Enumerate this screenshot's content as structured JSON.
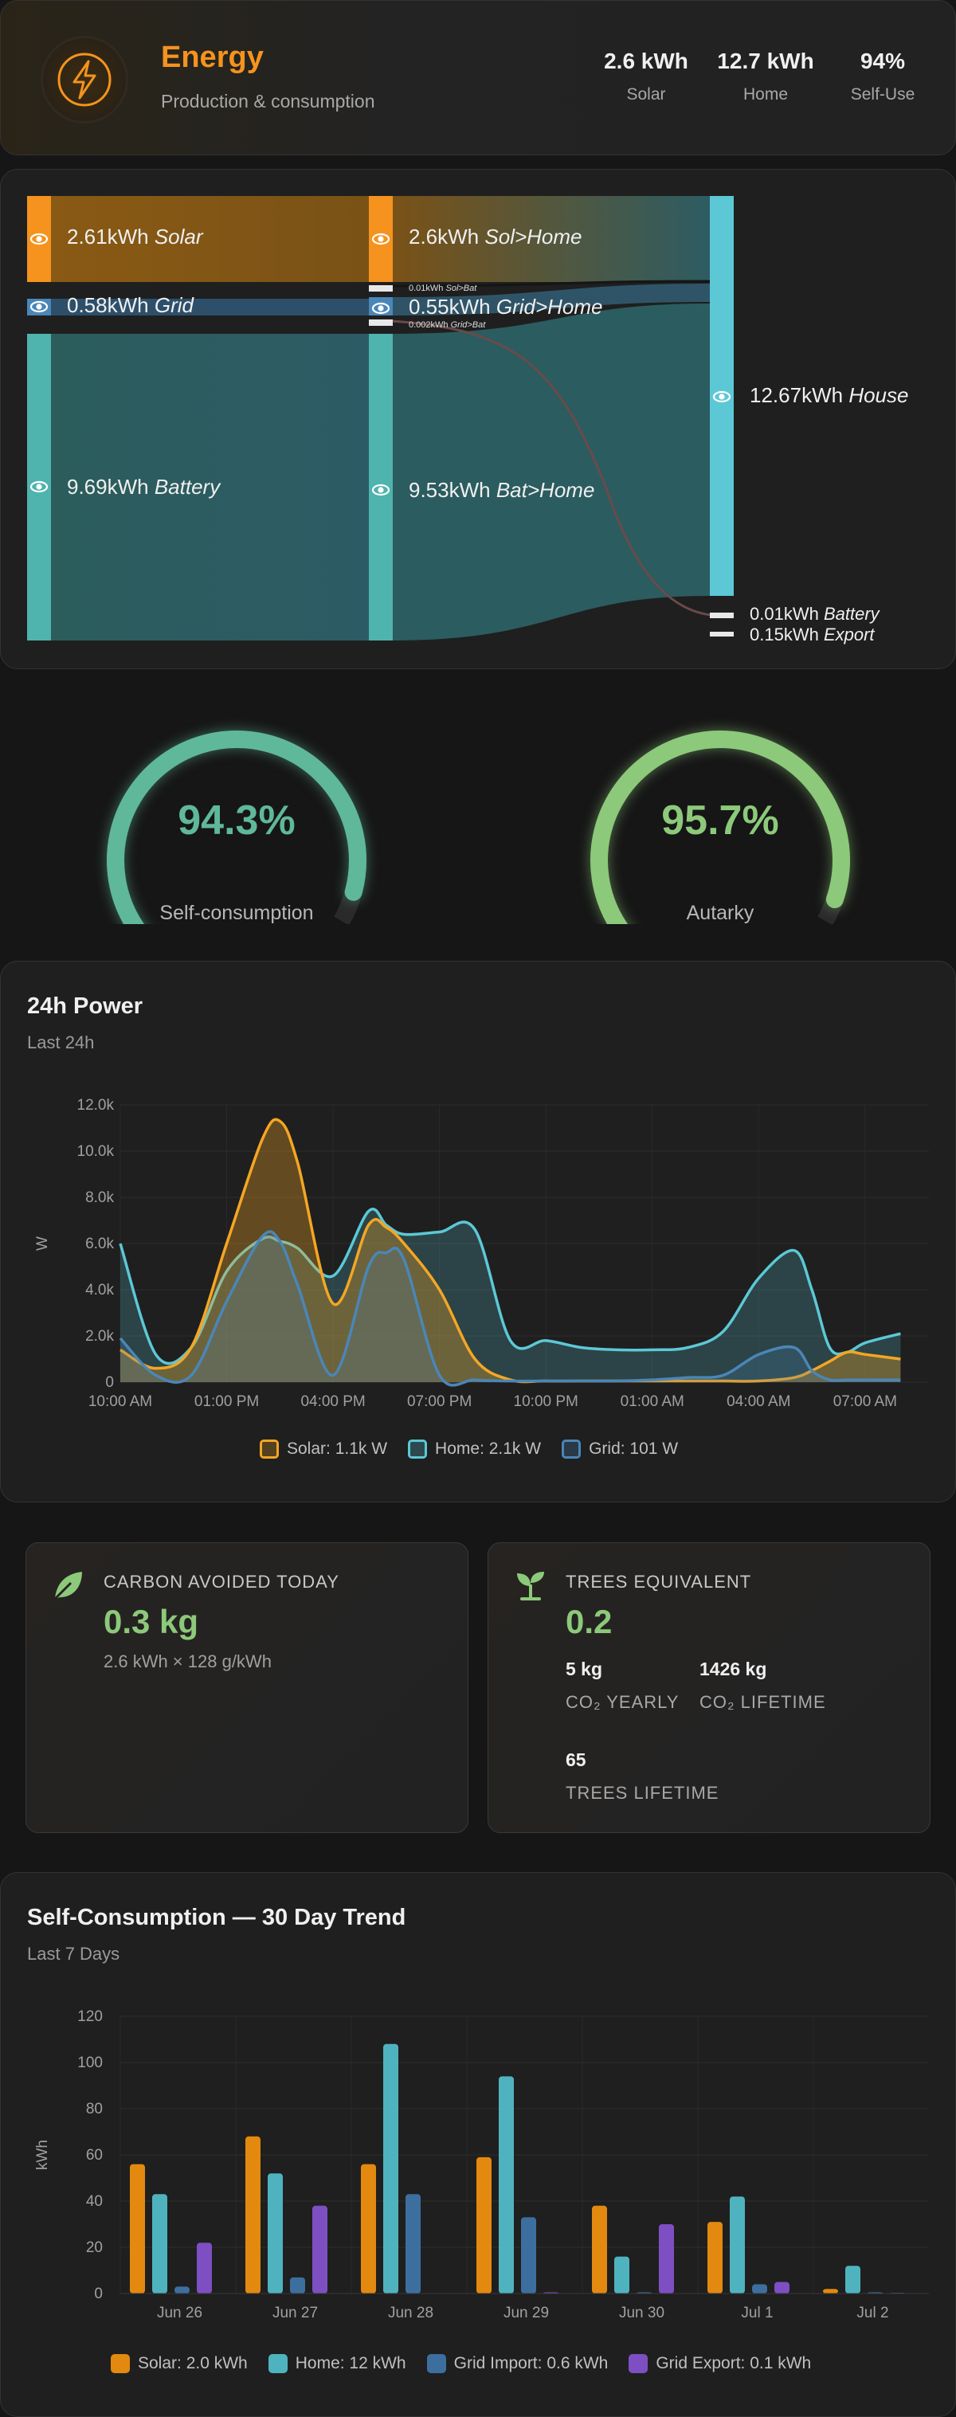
{
  "header": {
    "title": "Energy",
    "subtitle": "Production & consumption",
    "stats": [
      {
        "value": "2.6 kWh",
        "label": "Solar"
      },
      {
        "value": "12.7 kWh",
        "label": "Home"
      },
      {
        "value": "94%",
        "label": "Self-Use"
      }
    ],
    "accent": "#f5931e"
  },
  "sankey": {
    "sources": [
      {
        "value": "2.61kWh",
        "name": "Solar"
      },
      {
        "value": "0.58kWh",
        "name": "Grid"
      },
      {
        "value": "9.69kWh",
        "name": "Battery"
      }
    ],
    "middle": [
      {
        "value": "2.6kWh",
        "name": "Sol>Home"
      },
      {
        "value": "0.01kWh",
        "name": "Sol>Bat"
      },
      {
        "value": "0.55kWh",
        "name": "Grid>Home"
      },
      {
        "value": "0.002kWh",
        "name": "Grid>Bat"
      },
      {
        "value": "9.53kWh",
        "name": "Bat>Home"
      }
    ],
    "targets": [
      {
        "value": "12.67kWh",
        "name": "House"
      },
      {
        "value": "0.01kWh",
        "name": "Battery"
      },
      {
        "value": "0.15kWh",
        "name": "Export"
      }
    ]
  },
  "gauges": [
    {
      "value": "94.3%",
      "fraction": 0.943,
      "label": "Self-consumption",
      "color": "#5fb89a"
    },
    {
      "value": "95.7%",
      "fraction": 0.957,
      "label": "Autarky",
      "color": "#8cc97a"
    }
  ],
  "power_chart": {
    "title": "24h Power",
    "subtitle": "Last 24h",
    "legend": [
      "Solar: 1.1k W",
      "Home: 2.1k W",
      "Grid: 101 W"
    ],
    "chart_data": {
      "type": "area",
      "ylabel": "W",
      "ylim": [
        0,
        12000
      ],
      "y_ticks": [
        "0",
        "2.0k",
        "4.0k",
        "6.0k",
        "8.0k",
        "10.0k",
        "12.0k"
      ],
      "x_ticks": [
        "10:00 AM",
        "01:00 PM",
        "04:00 PM",
        "07:00 PM",
        "10:00 PM",
        "01:00 AM",
        "04:00 AM",
        "07:00 AM"
      ],
      "x_hours": [
        0,
        1,
        2,
        3,
        4,
        4.5,
        5,
        6,
        7,
        7.5,
        8,
        9,
        10,
        11,
        12,
        13,
        14,
        15,
        16,
        17,
        18,
        19,
        19.5,
        20,
        20.5,
        21,
        22
      ],
      "series": [
        {
          "name": "Solar",
          "color": "#f5a623",
          "values": [
            1400,
            600,
            1500,
            6000,
            10500,
            11300,
            9500,
            3400,
            6800,
            6700,
            6000,
            4000,
            1000,
            100,
            50,
            50,
            50,
            50,
            50,
            50,
            50,
            200,
            500,
            900,
            1300,
            1200,
            1000
          ]
        },
        {
          "name": "Home",
          "color": "#5cc8d6",
          "values": [
            6000,
            1200,
            1500,
            4800,
            6200,
            6100,
            5800,
            4600,
            7400,
            6800,
            6400,
            6500,
            6600,
            1800,
            1800,
            1500,
            1400,
            1400,
            1500,
            2200,
            4500,
            5700,
            4000,
            1500,
            1300,
            1700,
            2100
          ]
        },
        {
          "name": "Grid",
          "color": "#4a86b8",
          "values": [
            1900,
            300,
            300,
            3500,
            6300,
            6100,
            4200,
            300,
            5000,
            5600,
            5300,
            300,
            100,
            50,
            50,
            50,
            50,
            100,
            200,
            300,
            1200,
            1500,
            500,
            100,
            100,
            100,
            100
          ]
        }
      ]
    }
  },
  "carbon": {
    "title": "CARBON AVOIDED TODAY",
    "value": "0.3 kg",
    "sub": "2.6 kWh × 128 g/kWh"
  },
  "trees": {
    "title": "TREES EQUIVALENT",
    "value": "0.2",
    "yearly_value": "5 kg",
    "yearly_label": "CO₂ YEARLY",
    "lifetime_value": "1426 kg",
    "lifetime_label": "CO₂ LIFETIME",
    "trees_value": "65",
    "trees_label": "TREES LIFETIME"
  },
  "trend_chart": {
    "title": "Self-Consumption — 30 Day Trend",
    "subtitle": "Last 7 Days",
    "legend": [
      "Solar: 2.0 kWh",
      "Home: 12 kWh",
      "Grid Import: 0.6 kWh",
      "Grid Export: 0.1 kWh"
    ],
    "chart_data": {
      "type": "bar",
      "ylabel": "kWh",
      "ylim": [
        0,
        120
      ],
      "y_ticks": [
        "0",
        "20",
        "40",
        "60",
        "80",
        "100",
        "120"
      ],
      "categories": [
        "Jun 26",
        "Jun 27",
        "Jun 28",
        "Jun 29",
        "Jun 30",
        "Jul 1",
        "Jul 2"
      ],
      "series": [
        {
          "name": "Solar",
          "color": "#e3890f",
          "values": [
            56,
            68,
            56,
            59,
            38,
            31,
            2
          ]
        },
        {
          "name": "Home",
          "color": "#4fb3bf",
          "values": [
            43,
            52,
            108,
            94,
            16,
            42,
            12
          ]
        },
        {
          "name": "Grid Import",
          "color": "#3d6f9e",
          "values": [
            3,
            7,
            43,
            33,
            0.5,
            4,
            0.5
          ]
        },
        {
          "name": "Grid Export",
          "color": "#7e4fc2",
          "values": [
            22,
            38,
            0,
            0.5,
            30,
            5,
            0.3
          ]
        }
      ]
    }
  }
}
